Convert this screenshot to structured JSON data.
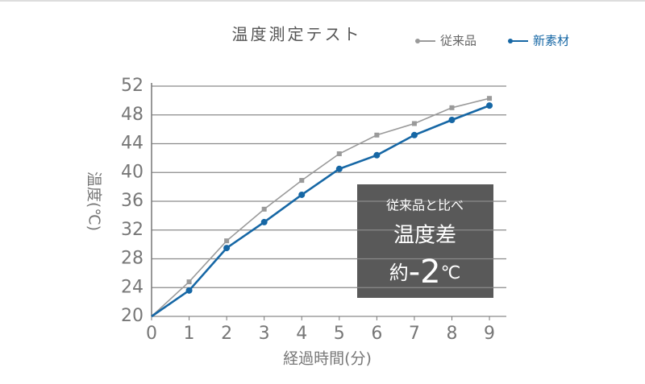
{
  "chart_data": {
    "type": "line",
    "title": "温度測定テスト",
    "x_label": "経過時間(分)",
    "y_label": "温度(℃)",
    "x": [
      0,
      1,
      2,
      3,
      4,
      5,
      6,
      7,
      8,
      9
    ],
    "series": [
      {
        "name": "従来品",
        "color": "#9a9a9a",
        "values": [
          20,
          24.8,
          30.5,
          34.9,
          38.9,
          42.6,
          45.2,
          46.8,
          49.0,
          50.3
        ]
      },
      {
        "name": "新素材",
        "color": "#1667a5",
        "values": [
          20,
          23.6,
          29.5,
          33.1,
          36.9,
          40.5,
          42.4,
          45.2,
          47.3,
          49.3
        ]
      }
    ],
    "xlim": [
      0,
      9.45
    ],
    "xticks": [
      0,
      1,
      2,
      3,
      4,
      5,
      6,
      7,
      8,
      9
    ],
    "ylim": [
      20,
      52
    ],
    "yticks": [
      20,
      24,
      28,
      32,
      36,
      40,
      44,
      48,
      52
    ],
    "grid": true,
    "annotation": {
      "lines": [
        "従来品と比べ",
        "温度差"
      ],
      "value_parts": [
        "約",
        "-2",
        "℃"
      ]
    }
  }
}
